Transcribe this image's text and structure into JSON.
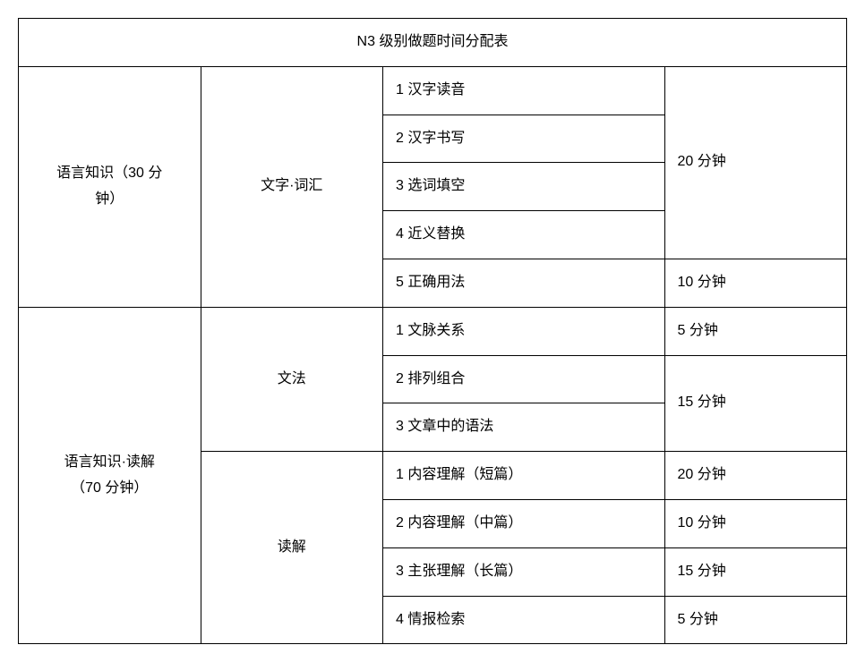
{
  "table": {
    "title": "N3 级别做题时间分配表",
    "col_widths": [
      "22%",
      "22%",
      "34%",
      "22%"
    ],
    "sections": [
      {
        "major": "语言知识（30 分\n钟）",
        "subs": [
          {
            "sub": "文字·词汇",
            "rows": [
              {
                "item": "1 汉字读音",
                "time": "20 分钟",
                "time_rowspan": 4
              },
              {
                "item": "2 汉字书写"
              },
              {
                "item": "3 选词填空"
              },
              {
                "item": "4 近义替换"
              },
              {
                "item": "5 正确用法",
                "time": "10 分钟",
                "time_rowspan": 1
              }
            ]
          }
        ]
      },
      {
        "major": "语言知识·读解\n（70 分钟）",
        "subs": [
          {
            "sub": "文法",
            "rows": [
              {
                "item": "1 文脉关系",
                "time": "5 分钟",
                "time_rowspan": 1
              },
              {
                "item": "2 排列组合",
                "time": "15 分钟",
                "time_rowspan": 2
              },
              {
                "item": "3 文章中的语法"
              }
            ]
          },
          {
            "sub": "读解",
            "rows": [
              {
                "item": "1 内容理解（短篇）",
                "time": "20 分钟",
                "time_rowspan": 1
              },
              {
                "item": "2 内容理解（中篇）",
                "time": "10 分钟",
                "time_rowspan": 1
              },
              {
                "item": "3 主张理解（长篇）",
                "time": "15 分钟",
                "time_rowspan": 1
              },
              {
                "item": "4 情报检索",
                "time": "5 分钟",
                "time_rowspan": 1
              }
            ]
          }
        ]
      }
    ]
  }
}
